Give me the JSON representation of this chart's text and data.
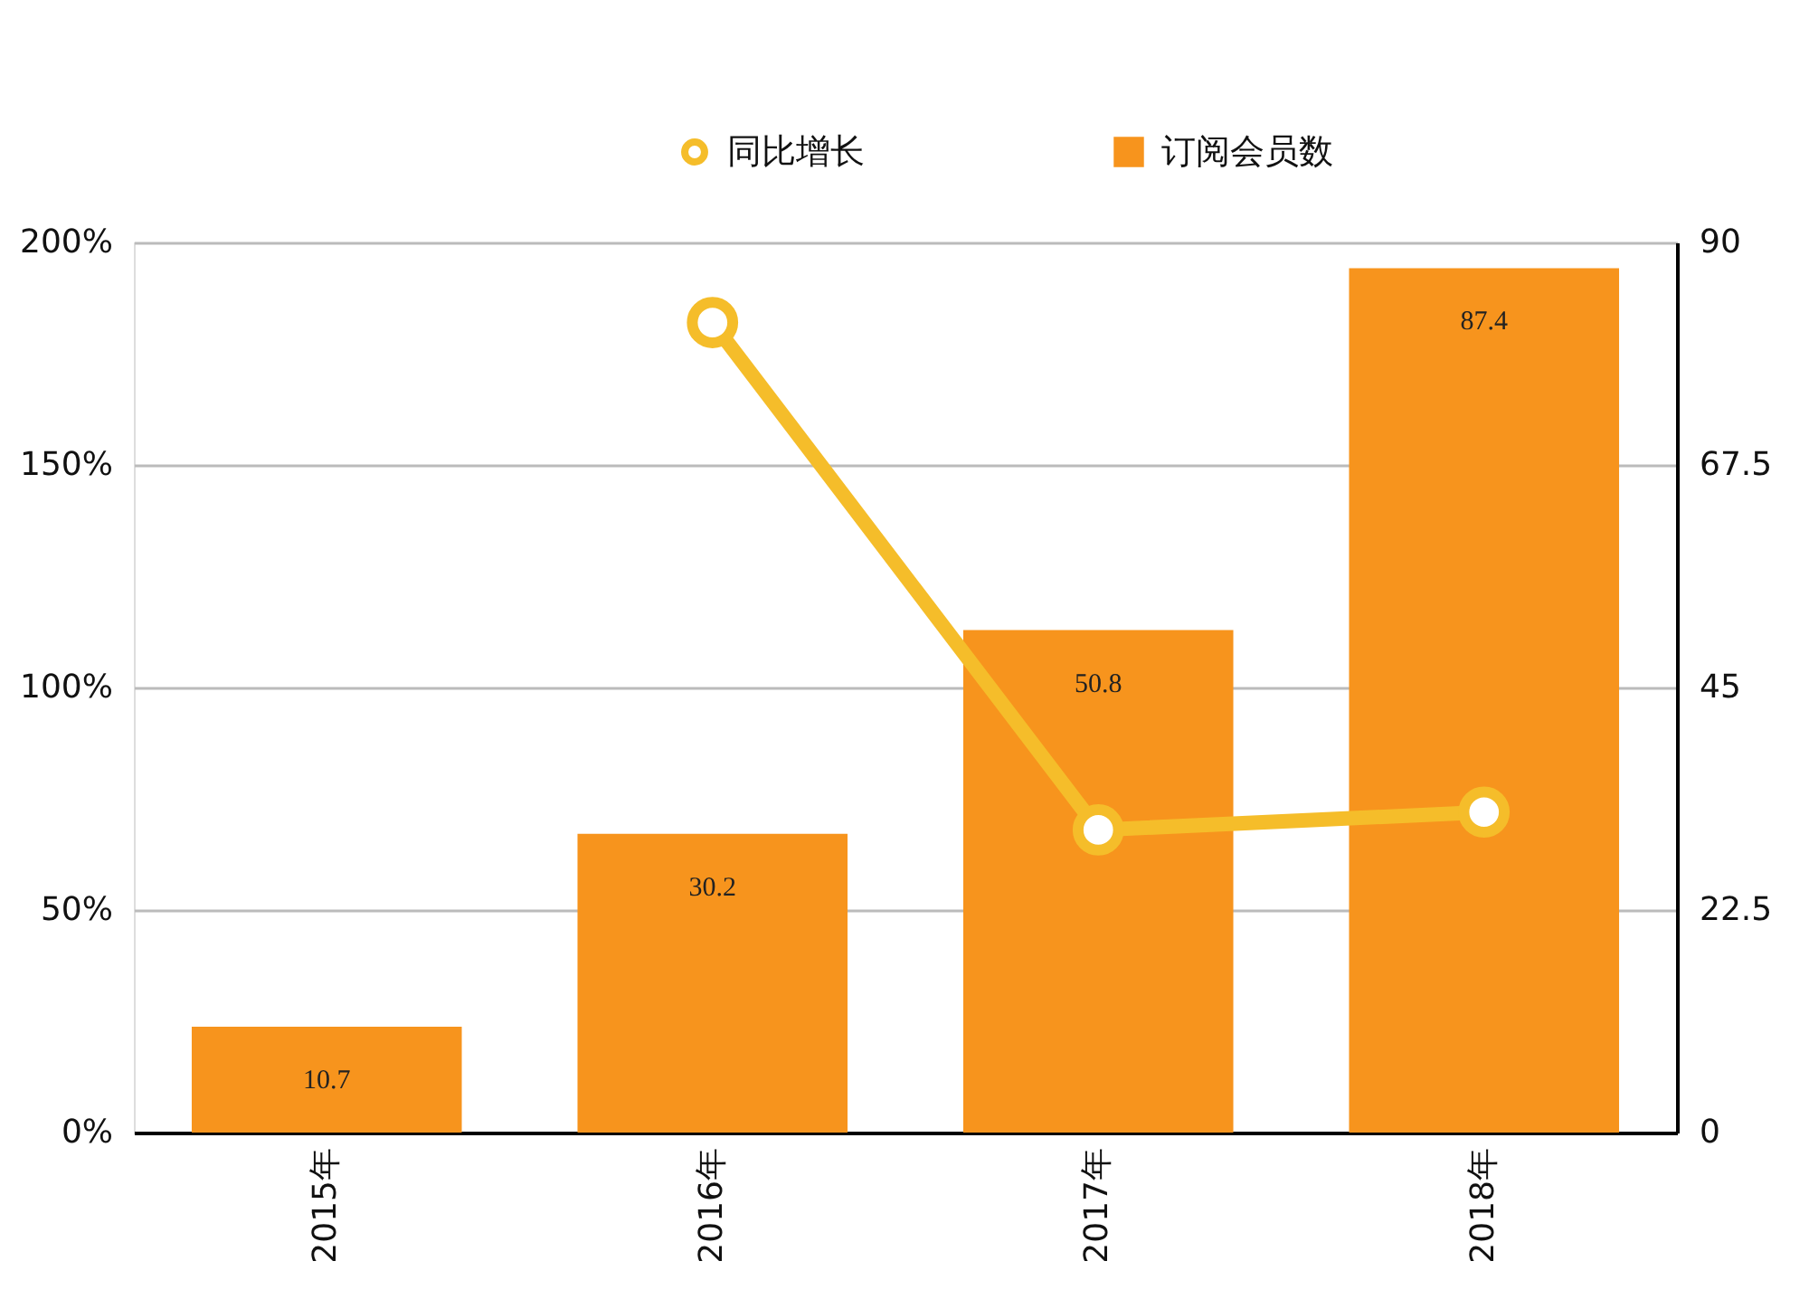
{
  "chart_data": {
    "type": "bar",
    "categories": [
      "2015年",
      "2016年",
      "2017年",
      "2018年"
    ],
    "series": [
      {
        "name": "同比增长",
        "type": "line",
        "axis": "y",
        "color": "#f5bd2a",
        "values": [
          null,
          182,
          68,
          72
        ]
      },
      {
        "name": "订阅会员数",
        "axis": "y2",
        "color": "#f7941d",
        "values": [
          10.7,
          30.2,
          50.8,
          87.4
        ],
        "value_labels": [
          "10.7",
          "30.2",
          "50.8",
          "87.4"
        ]
      }
    ],
    "ylim": [
      0,
      200
    ],
    "yticks": [
      {
        "value": 0,
        "label": "0%"
      },
      {
        "value": 50,
        "label": "50%"
      },
      {
        "value": 100,
        "label": "100%"
      },
      {
        "value": 150,
        "label": "150%"
      },
      {
        "value": 200,
        "label": "200%"
      }
    ],
    "y2lim": [
      0,
      90
    ],
    "y2ticks": [
      0,
      {
        "value": 22.5,
        "label": "22.5"
      },
      45,
      {
        "value": 67.5,
        "label": "67.5"
      },
      90
    ],
    "grid": "y",
    "legend": "top",
    "marker": "circle",
    "line_style": "solid"
  }
}
